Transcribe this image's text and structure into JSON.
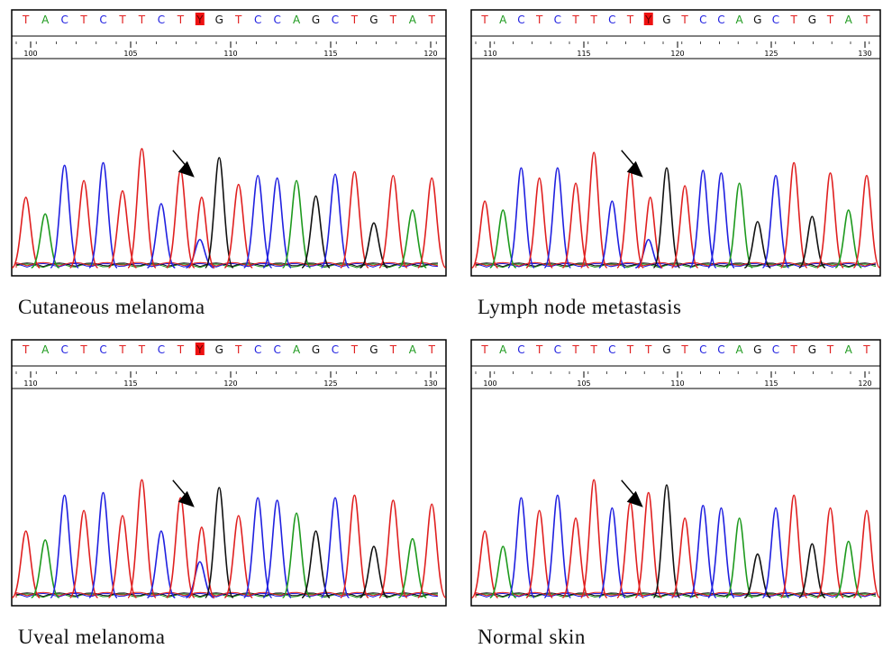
{
  "chart_data": [
    {
      "type": "line",
      "title": "Cutaneous melanoma",
      "sequence": [
        "T",
        "A",
        "C",
        "T",
        "C",
        "T",
        "T",
        "C",
        "T",
        "Y",
        "G",
        "T",
        "C",
        "C",
        "A",
        "G",
        "C",
        "T",
        "G",
        "T",
        "A",
        "T"
      ],
      "highlight_index": 9,
      "position_ticks": [
        100,
        105,
        110,
        115,
        120
      ],
      "peak_heights": [
        0.55,
        0.42,
        0.8,
        0.68,
        0.82,
        0.6,
        0.93,
        0.5,
        0.76,
        0.22,
        0.86,
        0.65,
        0.72,
        0.7,
        0.68,
        0.56,
        0.73,
        0.75,
        0.35,
        0.72,
        0.45,
        0.7
      ],
      "ylim": [
        0,
        1
      ]
    },
    {
      "type": "line",
      "title": "Lymph node metastasis",
      "sequence": [
        "T",
        "A",
        "C",
        "T",
        "C",
        "T",
        "T",
        "C",
        "T",
        "Y",
        "G",
        "T",
        "C",
        "C",
        "A",
        "G",
        "C",
        "T",
        "G",
        "T",
        "A",
        "T"
      ],
      "highlight_index": 9,
      "position_ticks": [
        110,
        115,
        120,
        125,
        130
      ],
      "peak_heights": [
        0.52,
        0.45,
        0.78,
        0.7,
        0.78,
        0.66,
        0.9,
        0.52,
        0.76,
        0.22,
        0.78,
        0.64,
        0.76,
        0.74,
        0.66,
        0.36,
        0.72,
        0.82,
        0.4,
        0.74,
        0.45,
        0.72
      ],
      "ylim": [
        0,
        1
      ]
    },
    {
      "type": "line",
      "title": "Uveal melanoma",
      "sequence": [
        "T",
        "A",
        "C",
        "T",
        "C",
        "T",
        "T",
        "C",
        "T",
        "Y",
        "G",
        "T",
        "C",
        "C",
        "A",
        "G",
        "C",
        "T",
        "G",
        "T",
        "A",
        "T"
      ],
      "highlight_index": 9,
      "position_ticks": [
        110,
        115,
        120,
        125,
        130
      ],
      "peak_heights": [
        0.52,
        0.45,
        0.8,
        0.68,
        0.82,
        0.64,
        0.92,
        0.52,
        0.78,
        0.28,
        0.86,
        0.64,
        0.78,
        0.76,
        0.66,
        0.52,
        0.78,
        0.8,
        0.4,
        0.76,
        0.46,
        0.73
      ],
      "ylim": [
        0,
        1
      ]
    },
    {
      "type": "line",
      "title": "Normal skin",
      "sequence": [
        "T",
        "A",
        "C",
        "T",
        "C",
        "T",
        "T",
        "C",
        "T",
        "T",
        "G",
        "T",
        "C",
        "C",
        "A",
        "G",
        "C",
        "T",
        "G",
        "T",
        "A",
        "T"
      ],
      "highlight_index": -1,
      "position_ticks": [
        100,
        105,
        110,
        115,
        120
      ],
      "peak_heights": [
        0.52,
        0.4,
        0.78,
        0.68,
        0.8,
        0.62,
        0.92,
        0.7,
        0.74,
        0.82,
        0.88,
        0.62,
        0.72,
        0.7,
        0.62,
        0.34,
        0.7,
        0.8,
        0.42,
        0.7,
        0.44,
        0.68
      ],
      "ylim": [
        0,
        1
      ]
    }
  ],
  "colors": {
    "A": "#1e9a1e",
    "C": "#2020e0",
    "G": "#111111",
    "T": "#e02020",
    "Y": "#2020e0",
    "highlight_bg": "#ee1111",
    "arrow": "#000000"
  }
}
